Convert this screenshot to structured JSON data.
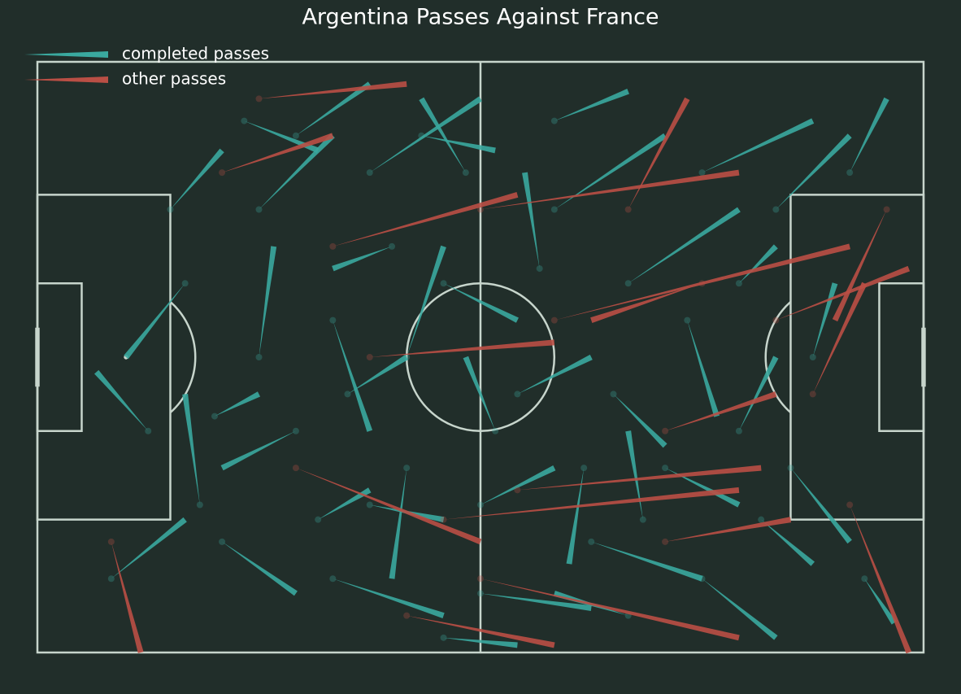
{
  "chart_data": {
    "type": "passmap",
    "title": "Argentina Passes Against France",
    "xlim": [
      0,
      120
    ],
    "ylim": [
      80,
      0
    ],
    "legend": "upper left",
    "series": [
      {
        "name": "completed passes",
        "color": "#3aa99f",
        "x": [
          20,
          30,
          45,
          50,
          60,
          35,
          70,
          80,
          90,
          100,
          25,
          40,
          60,
          75,
          85,
          95,
          55,
          40,
          30,
          22,
          65,
          78,
          88,
          50,
          35,
          15,
          10,
          105,
          102,
          70,
          45,
          58,
          62,
          48,
          28,
          18,
          90,
          80,
          110,
          95,
          55,
          42,
          24,
          68,
          82,
          112,
          38,
          52,
          74,
          98
        ],
        "y": [
          30,
          20,
          15,
          40,
          60,
          50,
          20,
          30,
          15,
          20,
          65,
          70,
          72,
          65,
          55,
          50,
          30,
          35,
          40,
          60,
          45,
          45,
          35,
          55,
          10,
          50,
          70,
          40,
          55,
          8,
          60,
          15,
          50,
          25,
          8,
          20,
          70,
          75,
          15,
          30,
          78,
          45,
          48,
          28,
          62,
          70,
          62,
          10,
          55,
          62
        ],
        "x_end": [
          12,
          40,
          60,
          55,
          70,
          25,
          85,
          95,
          105,
          110,
          35,
          55,
          75,
          90,
          95,
          100,
          65,
          45,
          32,
          20,
          75,
          85,
          92,
          48,
          45,
          8,
          20,
          108,
          110,
          80,
          55,
          52,
          58,
          40,
          38,
          25,
          100,
          70,
          115,
          100,
          65,
          50,
          30,
          66,
          80,
          116,
          45,
          62,
          72,
          105
        ],
        "y_end": [
          40,
          10,
          5,
          25,
          55,
          55,
          10,
          20,
          8,
          10,
          72,
          75,
          74,
          70,
          60,
          40,
          35,
          50,
          25,
          45,
          40,
          52,
          48,
          70,
          3,
          42,
          62,
          30,
          65,
          4,
          62,
          5,
          40,
          28,
          12,
          12,
          78,
          72,
          5,
          25,
          79,
          40,
          45,
          15,
          50,
          76,
          58,
          12,
          68,
          68
        ]
      },
      {
        "name": "other passes",
        "color": "#ba4f45",
        "x": [
          40,
          35,
          60,
          70,
          85,
          55,
          60,
          10,
          110,
          105,
          25,
          80,
          90,
          65,
          45,
          30,
          85,
          115,
          100,
          50
        ],
        "y": [
          25,
          55,
          20,
          35,
          50,
          62,
          70,
          65,
          60,
          45,
          15,
          20,
          30,
          58,
          40,
          5,
          65,
          20,
          35,
          75
        ],
        "x_end": [
          65,
          60,
          95,
          110,
          100,
          95,
          95,
          14,
          118,
          112,
          40,
          88,
          75,
          98,
          70,
          50,
          102,
          108,
          118,
          70
        ],
        "y_end": [
          18,
          65,
          15,
          25,
          45,
          58,
          78,
          80,
          80,
          30,
          10,
          5,
          35,
          55,
          38,
          3,
          62,
          35,
          28,
          79
        ]
      }
    ]
  }
}
